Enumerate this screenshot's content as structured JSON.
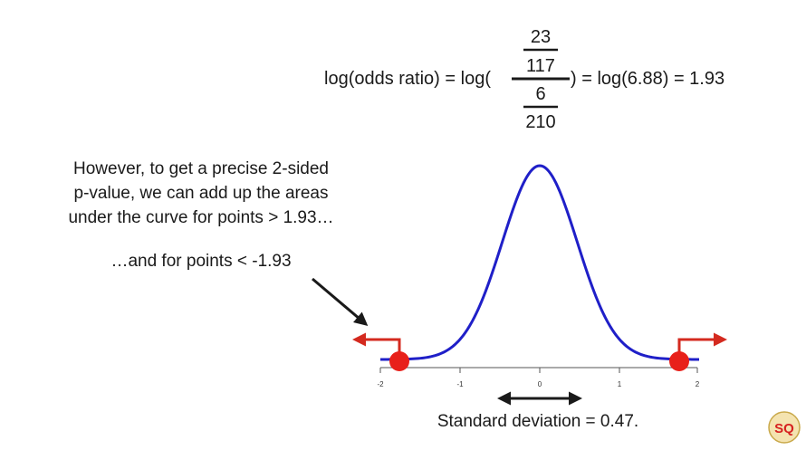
{
  "equation": {
    "lhs": "log(odds ratio) = log(",
    "num_num": "23",
    "num_den": "117",
    "den_num": "6",
    "den_den": "210",
    "rhs": ") = log(6.88) = 1.93"
  },
  "annotation": {
    "line1": "However, to get a precise 2-sided",
    "line2": "p-value, we can add up the areas",
    "line3": "under the curve for points > 1.93…",
    "lower_note": "…and for points < -1.93"
  },
  "axis": {
    "ticks": [
      "-2",
      "-1",
      "0",
      "1",
      "2"
    ]
  },
  "std_label": "Standard deviation = 0.47.",
  "colors": {
    "curve": "#1f1fc8",
    "marker": "#e8201a",
    "arrow_red": "#d42a1f",
    "text": "#1a1a1a"
  },
  "logo": "SQ"
}
